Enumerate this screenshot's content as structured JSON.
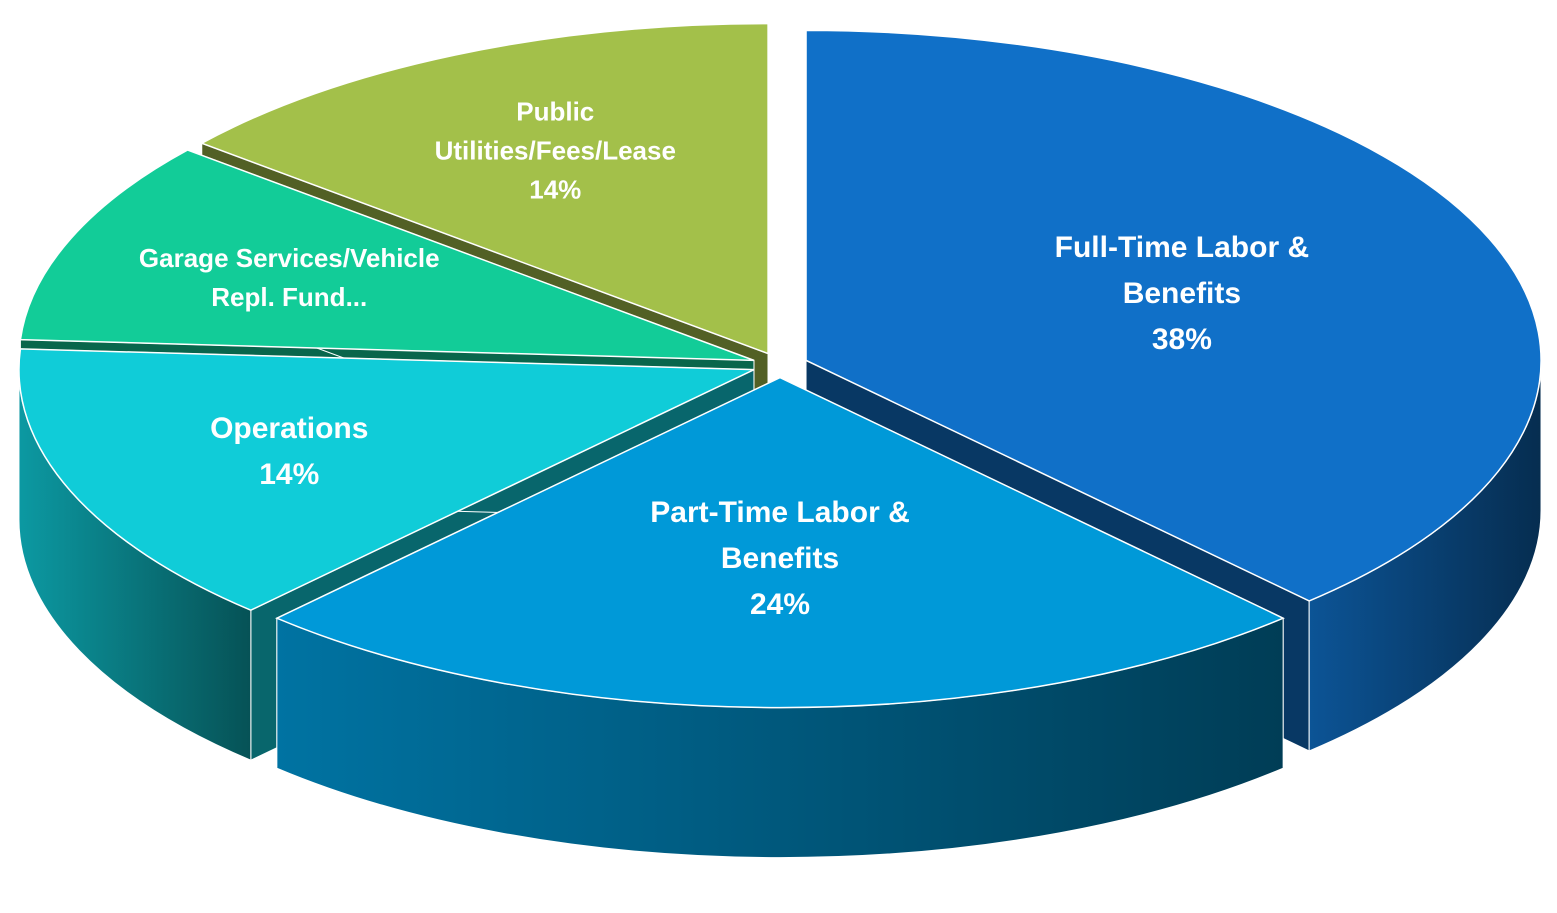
{
  "chart_data": {
    "type": "pie3d",
    "categories": [
      "Full-Time Labor & Benefits",
      "Part-Time Labor & Benefits",
      "Operations",
      "Garage Services/Vehicle Repl. Fund...",
      "Public Utilities/Fees/Lease"
    ],
    "values": [
      38,
      24,
      14,
      10,
      14
    ],
    "value_labels": [
      "38%",
      "24%",
      "14%",
      null,
      "14%"
    ],
    "colors": [
      "#1070c8",
      "#0099d8",
      "#10ccd8",
      "#12cc98",
      "#a3c04a"
    ]
  }
}
